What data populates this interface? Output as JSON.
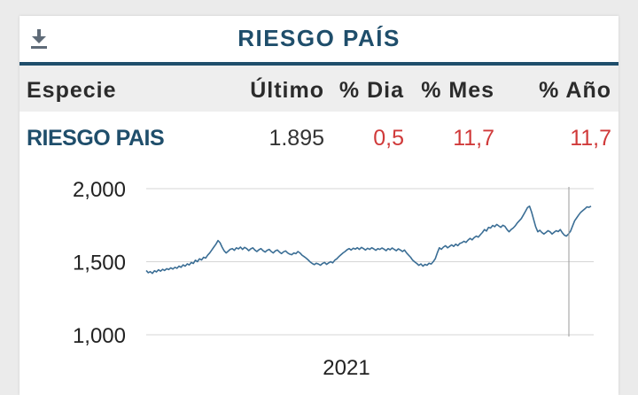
{
  "widget": {
    "title": "RIESGO PAÍS",
    "download_icon": "download-icon"
  },
  "table": {
    "headers": [
      "Especie",
      "Último",
      "% Dia",
      "% Mes",
      "% Año"
    ],
    "rows": [
      {
        "especie": "RIESGO PAIS",
        "ultimo": "1.895",
        "dia": "0,5",
        "mes": "11,7",
        "anio": "11,7"
      }
    ]
  },
  "colors": {
    "accent": "#1f4e6b",
    "positive": "#d03a3a",
    "line": "#3b6e95"
  },
  "chart_data": {
    "type": "line",
    "ylim": [
      1000,
      2000
    ],
    "yticks": [
      1000,
      1500,
      2000
    ],
    "ytick_labels": [
      "1,000",
      "1,500",
      "2,000"
    ],
    "xtick_labels": [
      "2021"
    ],
    "grid": "horizontal",
    "series": [
      {
        "values": [
          1440,
          1425,
          1432,
          1420,
          1438,
          1430,
          1445,
          1435,
          1448,
          1440,
          1452,
          1446,
          1458,
          1450,
          1462,
          1455,
          1470,
          1462,
          1478,
          1470,
          1485,
          1478,
          1495,
          1488,
          1510,
          1500,
          1520,
          1512,
          1530,
          1525,
          1545,
          1560,
          1580,
          1600,
          1620,
          1645,
          1630,
          1600,
          1575,
          1560,
          1572,
          1585,
          1590,
          1578,
          1595,
          1588,
          1600,
          1584,
          1598,
          1590,
          1576,
          1588,
          1595,
          1580,
          1570,
          1582,
          1590,
          1575,
          1566,
          1578,
          1584,
          1570,
          1560,
          1574,
          1580,
          1566,
          1556,
          1568,
          1574,
          1560,
          1552,
          1548,
          1560,
          1555,
          1570,
          1560,
          1545,
          1535,
          1525,
          1512,
          1498,
          1488,
          1480,
          1490,
          1484,
          1476,
          1488,
          1495,
          1482,
          1492,
          1500,
          1492,
          1510,
          1520,
          1535,
          1548,
          1560,
          1570,
          1582,
          1590,
          1580,
          1592,
          1586,
          1596,
          1584,
          1598,
          1590,
          1580,
          1592,
          1584,
          1596,
          1588,
          1578,
          1590,
          1584,
          1594,
          1586,
          1576,
          1590,
          1582,
          1594,
          1584,
          1575,
          1588,
          1580,
          1570,
          1580,
          1560,
          1545,
          1530,
          1510,
          1498,
          1488,
          1475,
          1485,
          1470,
          1482,
          1476,
          1490,
          1484,
          1500,
          1520,
          1560,
          1595,
          1585,
          1600,
          1610,
          1595,
          1605,
          1615,
          1605,
          1620,
          1610,
          1625,
          1630,
          1640,
          1632,
          1648,
          1660,
          1650,
          1665,
          1675,
          1668,
          1685,
          1700,
          1720,
          1710,
          1735,
          1730,
          1748,
          1740,
          1755,
          1745,
          1735,
          1750,
          1742,
          1720,
          1705,
          1720,
          1730,
          1745,
          1765,
          1780,
          1795,
          1820,
          1845,
          1870,
          1880,
          1840,
          1790,
          1740,
          1705,
          1715,
          1700,
          1690,
          1700,
          1712,
          1705,
          1690,
          1702,
          1712,
          1706,
          1720,
          1698,
          1682,
          1675,
          1690,
          1710,
          1745,
          1780,
          1800,
          1820,
          1838,
          1850,
          1862,
          1875,
          1872,
          1880
        ]
      }
    ]
  }
}
